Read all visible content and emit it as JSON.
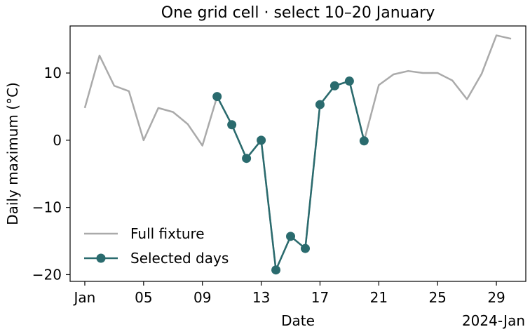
{
  "chart_data": {
    "type": "line",
    "title": "One grid cell · select 10–20 January",
    "xlabel": "Date",
    "ylabel": "Daily maximum (°C)",
    "x_offset_label": "2024-Jan",
    "xlim": [
      "2023-12-31",
      "2024-01-31"
    ],
    "ylim": [
      -21,
      17
    ],
    "x_ticks": [
      {
        "date": "2024-01-01",
        "label": "Jan"
      },
      {
        "date": "2024-01-05",
        "label": "05"
      },
      {
        "date": "2024-01-09",
        "label": "09"
      },
      {
        "date": "2024-01-13",
        "label": "13"
      },
      {
        "date": "2024-01-17",
        "label": "17"
      },
      {
        "date": "2024-01-21",
        "label": "21"
      },
      {
        "date": "2024-01-25",
        "label": "25"
      },
      {
        "date": "2024-01-29",
        "label": "29"
      }
    ],
    "y_ticks": [
      {
        "value": 10,
        "label": "10"
      },
      {
        "value": 0,
        "label": "0"
      },
      {
        "value": -10,
        "label": "−10"
      },
      {
        "value": -20,
        "label": "−20"
      }
    ],
    "legend_position": "lower-left",
    "series": [
      {
        "name": "Full fixture",
        "color": "#aaaaaa",
        "marker": "none",
        "points": [
          [
            "2024-01-01",
            4.8
          ],
          [
            "2024-01-02",
            12.6
          ],
          [
            "2024-01-03",
            8.1
          ],
          [
            "2024-01-04",
            7.3
          ],
          [
            "2024-01-05",
            0.0
          ],
          [
            "2024-01-06",
            4.8
          ],
          [
            "2024-01-07",
            4.2
          ],
          [
            "2024-01-08",
            2.4
          ],
          [
            "2024-01-09",
            -0.8
          ],
          [
            "2024-01-10",
            6.5
          ],
          [
            "2024-01-11",
            2.3
          ],
          [
            "2024-01-12",
            -2.7
          ],
          [
            "2024-01-13",
            0.0
          ],
          [
            "2024-01-14",
            -19.3
          ],
          [
            "2024-01-15",
            -14.3
          ],
          [
            "2024-01-16",
            -16.1
          ],
          [
            "2024-01-17",
            5.3
          ],
          [
            "2024-01-18",
            8.1
          ],
          [
            "2024-01-19",
            8.8
          ],
          [
            "2024-01-20",
            -0.1
          ],
          [
            "2024-01-21",
            8.2
          ],
          [
            "2024-01-22",
            9.8
          ],
          [
            "2024-01-23",
            10.3
          ],
          [
            "2024-01-24",
            10.0
          ],
          [
            "2024-01-25",
            10.0
          ],
          [
            "2024-01-26",
            8.9
          ],
          [
            "2024-01-27",
            6.1
          ],
          [
            "2024-01-28",
            9.9
          ],
          [
            "2024-01-29",
            15.6
          ],
          [
            "2024-01-30",
            15.1
          ]
        ]
      },
      {
        "name": "Selected days",
        "color": "#2a6b6e",
        "marker": "circle",
        "points": [
          [
            "2024-01-10",
            6.5
          ],
          [
            "2024-01-11",
            2.3
          ],
          [
            "2024-01-12",
            -2.7
          ],
          [
            "2024-01-13",
            0.0
          ],
          [
            "2024-01-14",
            -19.3
          ],
          [
            "2024-01-15",
            -14.3
          ],
          [
            "2024-01-16",
            -16.1
          ],
          [
            "2024-01-17",
            5.3
          ],
          [
            "2024-01-18",
            8.1
          ],
          [
            "2024-01-19",
            8.8
          ],
          [
            "2024-01-20",
            -0.1
          ]
        ]
      }
    ]
  }
}
